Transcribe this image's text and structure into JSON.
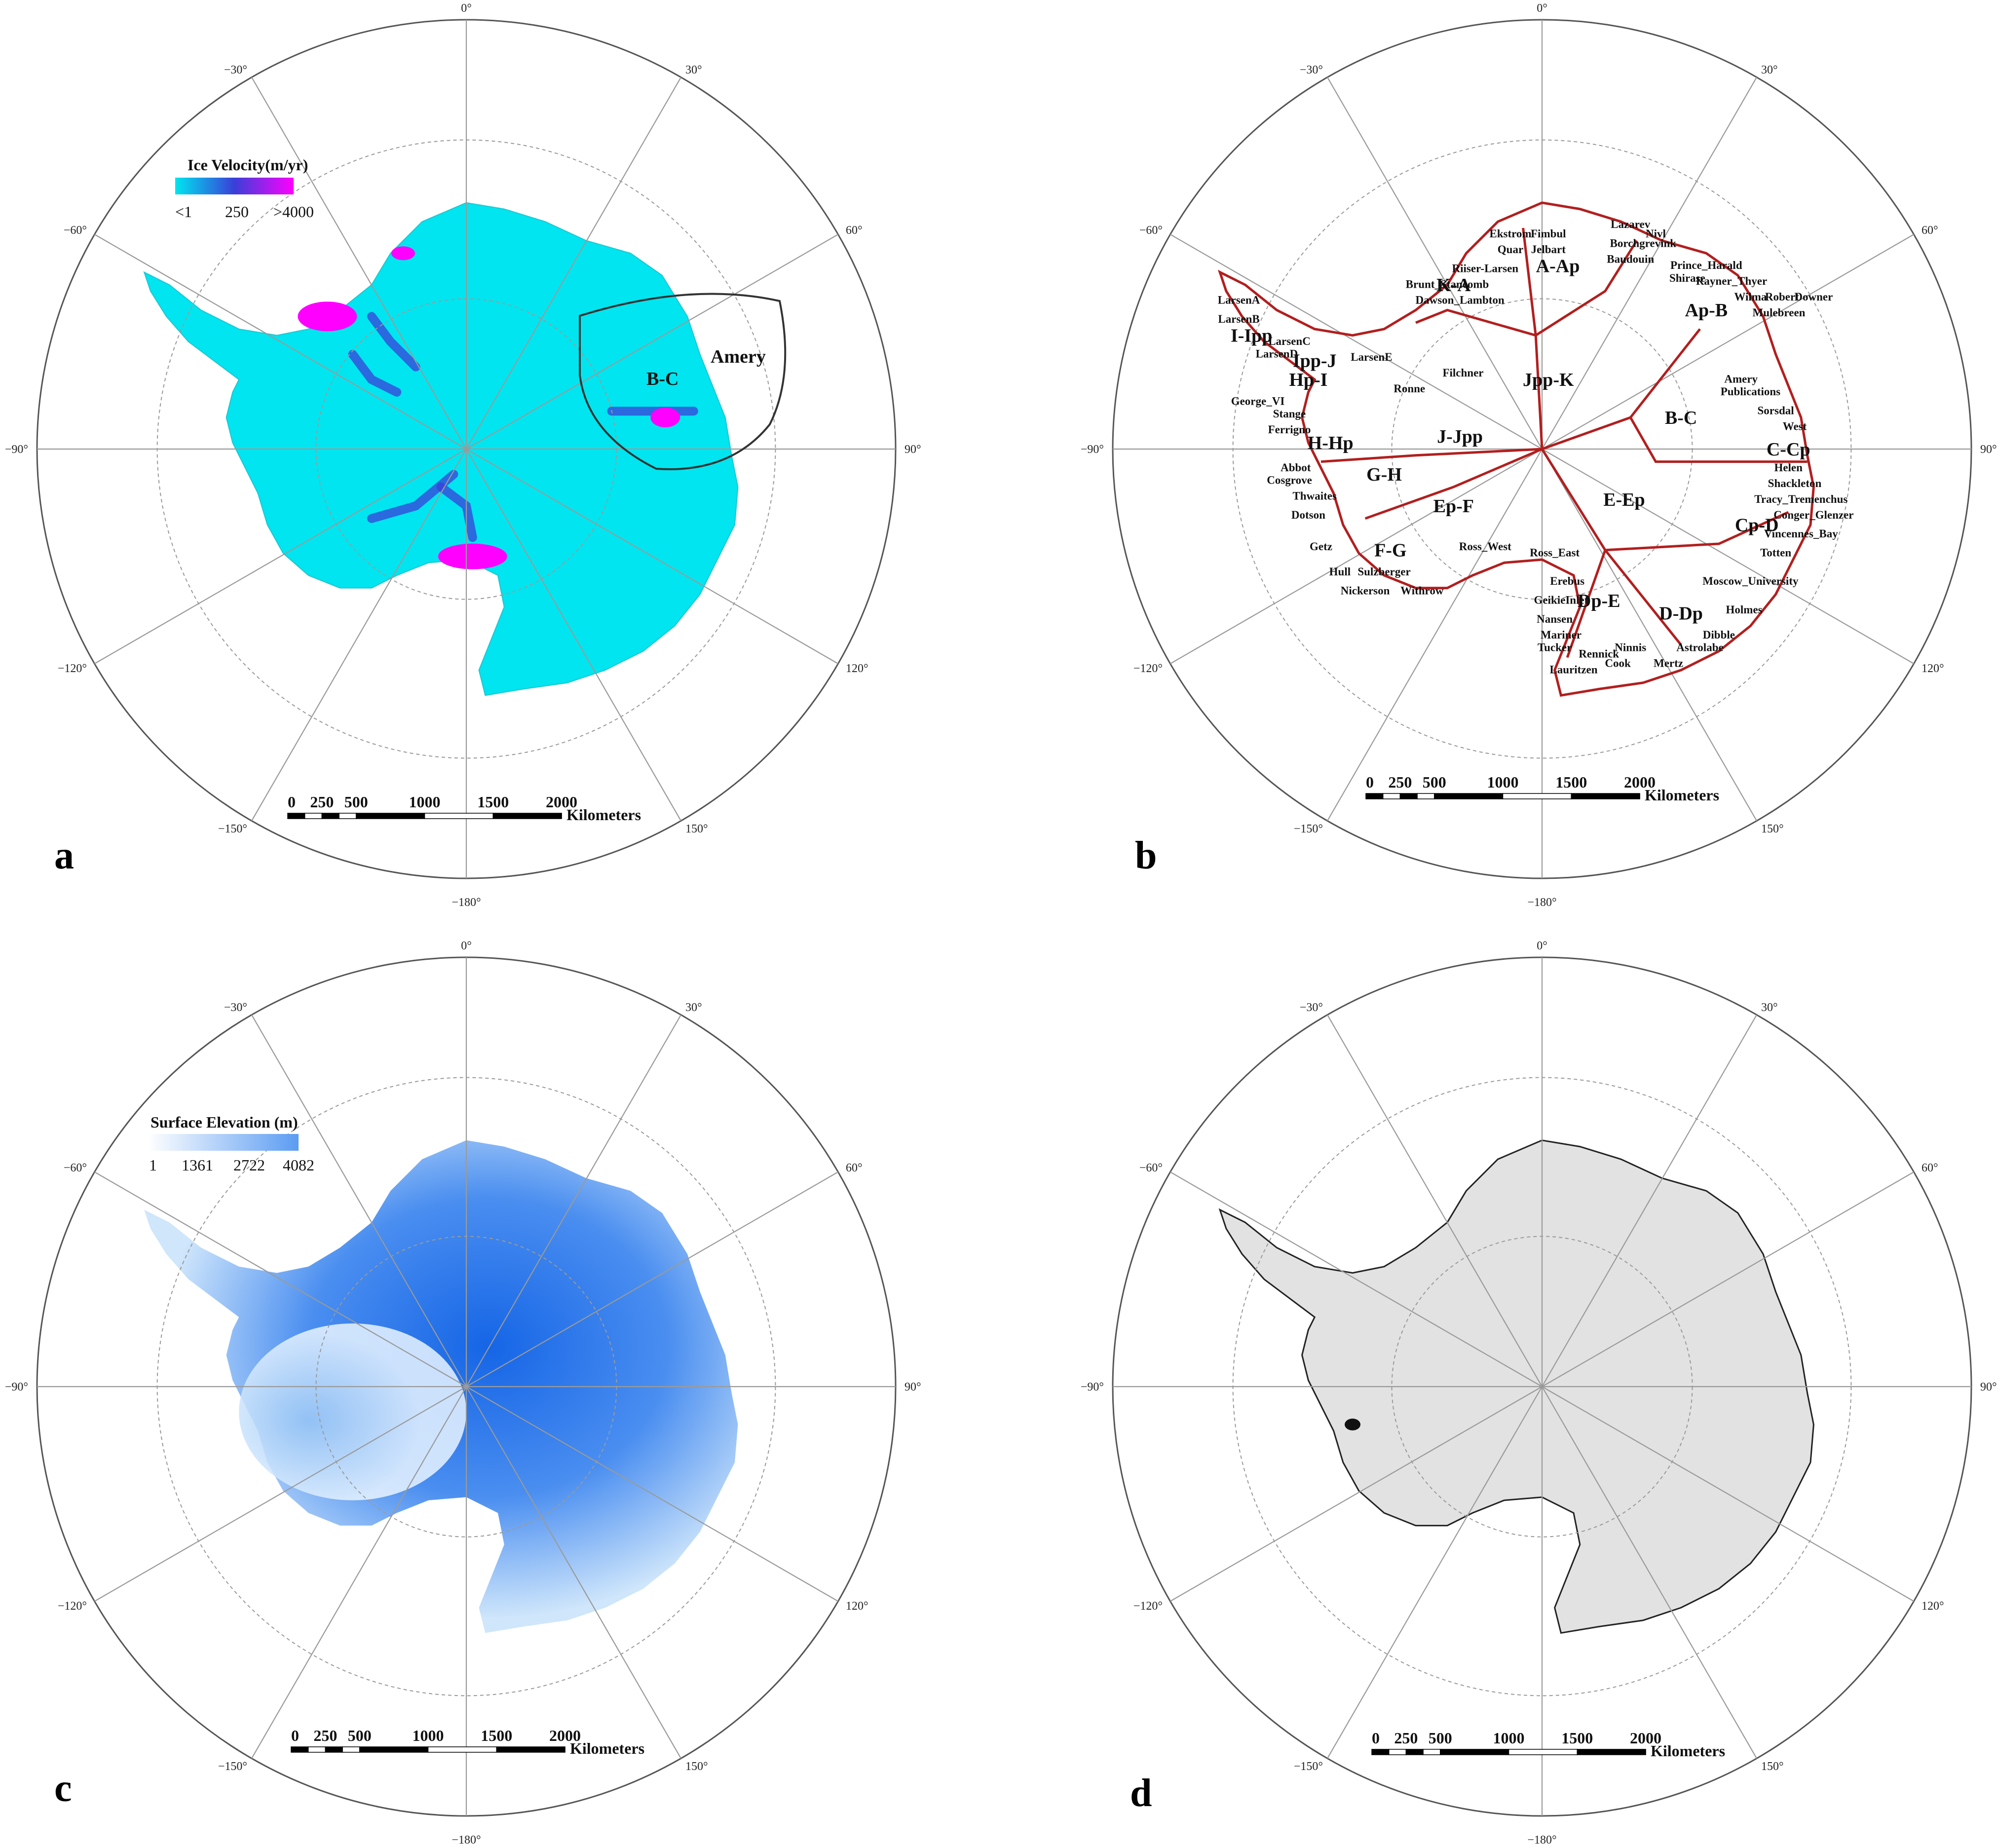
{
  "panels": [
    {
      "id": "a",
      "letter": "a",
      "legend": {
        "title": "Ice Velocity(m/yr)",
        "ticks": [
          "<1",
          "250",
          ">4000"
        ]
      },
      "annotations": [
        "B-C",
        "Amery"
      ]
    },
    {
      "id": "b",
      "letter": "b"
    },
    {
      "id": "c",
      "letter": "c",
      "legend": {
        "title": "Surface Elevation (m)",
        "ticks": [
          "1",
          "1361",
          "2722",
          "4082"
        ]
      }
    },
    {
      "id": "d",
      "letter": "d"
    }
  ],
  "longitude_labels": [
    "0°",
    "30°",
    "60°",
    "90°",
    "120°",
    "150°",
    "−180°",
    "−150°",
    "−120°",
    "−90°",
    "−60°",
    "−30°"
  ],
  "scale_bar": {
    "ticks": [
      "0",
      "250",
      "500",
      "1000",
      "1500",
      "2000"
    ],
    "unit": "Kilometers"
  },
  "basins": [
    "A-Ap",
    "Ap-B",
    "B-C",
    "C-Cp",
    "Cp-D",
    "D-Dp",
    "Dp-E",
    "E-Ep",
    "Ep-F",
    "F-G",
    "G-H",
    "H-Hp",
    "Hp-I",
    "I-Ipp",
    "Ipp-J",
    "J-Jpp",
    "Jpp-K",
    "K-A"
  ],
  "ice_shelves": [
    "Lazarev",
    "Nivl",
    "Ekstrom",
    "Fimbul",
    "Borchgrevink",
    "Quar",
    "Jelbart",
    "Baudouin",
    "Prince_Harald",
    "Shirase",
    "Rayner_Thyer",
    "Riiser-Larsen",
    "Brunt_Stancomb",
    "Dawson_Lambton",
    "Wilma",
    "Robert",
    "Downer",
    "Mulebreen",
    "LarsenA",
    "LarsenB",
    "LarsenC",
    "LarsenD",
    "LarsenE",
    "Filchner",
    "Ronne",
    "George_VI",
    "Stange",
    "Ferrigno",
    "Amery",
    "Publications",
    "Sorsdal",
    "West",
    "Abbot",
    "Cosgrove",
    "Thwaites",
    "Dotson",
    "Helen",
    "Shackleton",
    "Tracy_Tremenchus",
    "Conger_Glenzer",
    "Vincennes_Bay",
    "Totten",
    "Getz",
    "Hull",
    "Sulzberger",
    "Nickerson",
    "Withrow",
    "Ross_West",
    "Ross_East",
    "Erebus",
    "GeikieInlet",
    "Nansen",
    "Mariner",
    "Tucker",
    "Rennick",
    "Lauritzen",
    "Cook",
    "Ninnis",
    "Mertz",
    "Astrolabe",
    "Dibble",
    "Moscow_University",
    "Holmes"
  ],
  "colors": {
    "velocity_low": "#00e5ef",
    "velocity_mid": "#3a3fd8",
    "velocity_high": "#ff00ff",
    "elevation_low": "#eef7ff",
    "elevation_high": "#1565e6",
    "basin_lines": "#b21f1f",
    "panel_d_fill": "#e2e2e2"
  }
}
